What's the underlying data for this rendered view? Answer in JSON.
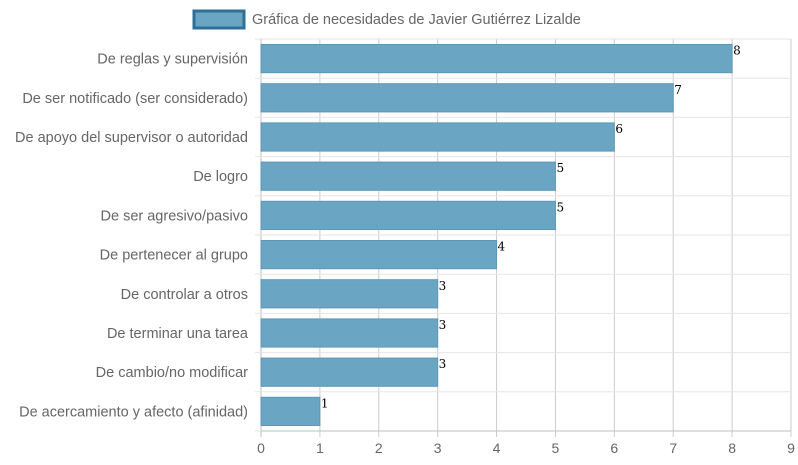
{
  "chart_data": {
    "type": "bar",
    "orientation": "horizontal",
    "legend": {
      "label": "Gráfica de necesidades de Javier Gutiérrez Lizalde",
      "position": "top"
    },
    "categories": [
      "De reglas y supervisión",
      "De ser notificado (ser considerado)",
      "De apoyo del supervisor o autoridad",
      "De logro",
      "De ser agresivo/pasivo",
      "De pertenecer al grupo",
      "De controlar a otros",
      "De terminar una tarea",
      "De cambio/no modificar",
      "De acercamiento y afecto (afinidad)"
    ],
    "values": [
      8,
      7,
      6,
      5,
      5,
      4,
      3,
      3,
      3,
      1
    ],
    "xlim": [
      0,
      9
    ],
    "xticks": [
      "0",
      "1",
      "2",
      "3",
      "4",
      "5",
      "6",
      "7",
      "8",
      "9"
    ],
    "grid": true,
    "bar_color": "#6ba5c4",
    "bar_border_color": "#5e98b8",
    "legend_border_color": "#2f6f97",
    "value_labels": true
  }
}
